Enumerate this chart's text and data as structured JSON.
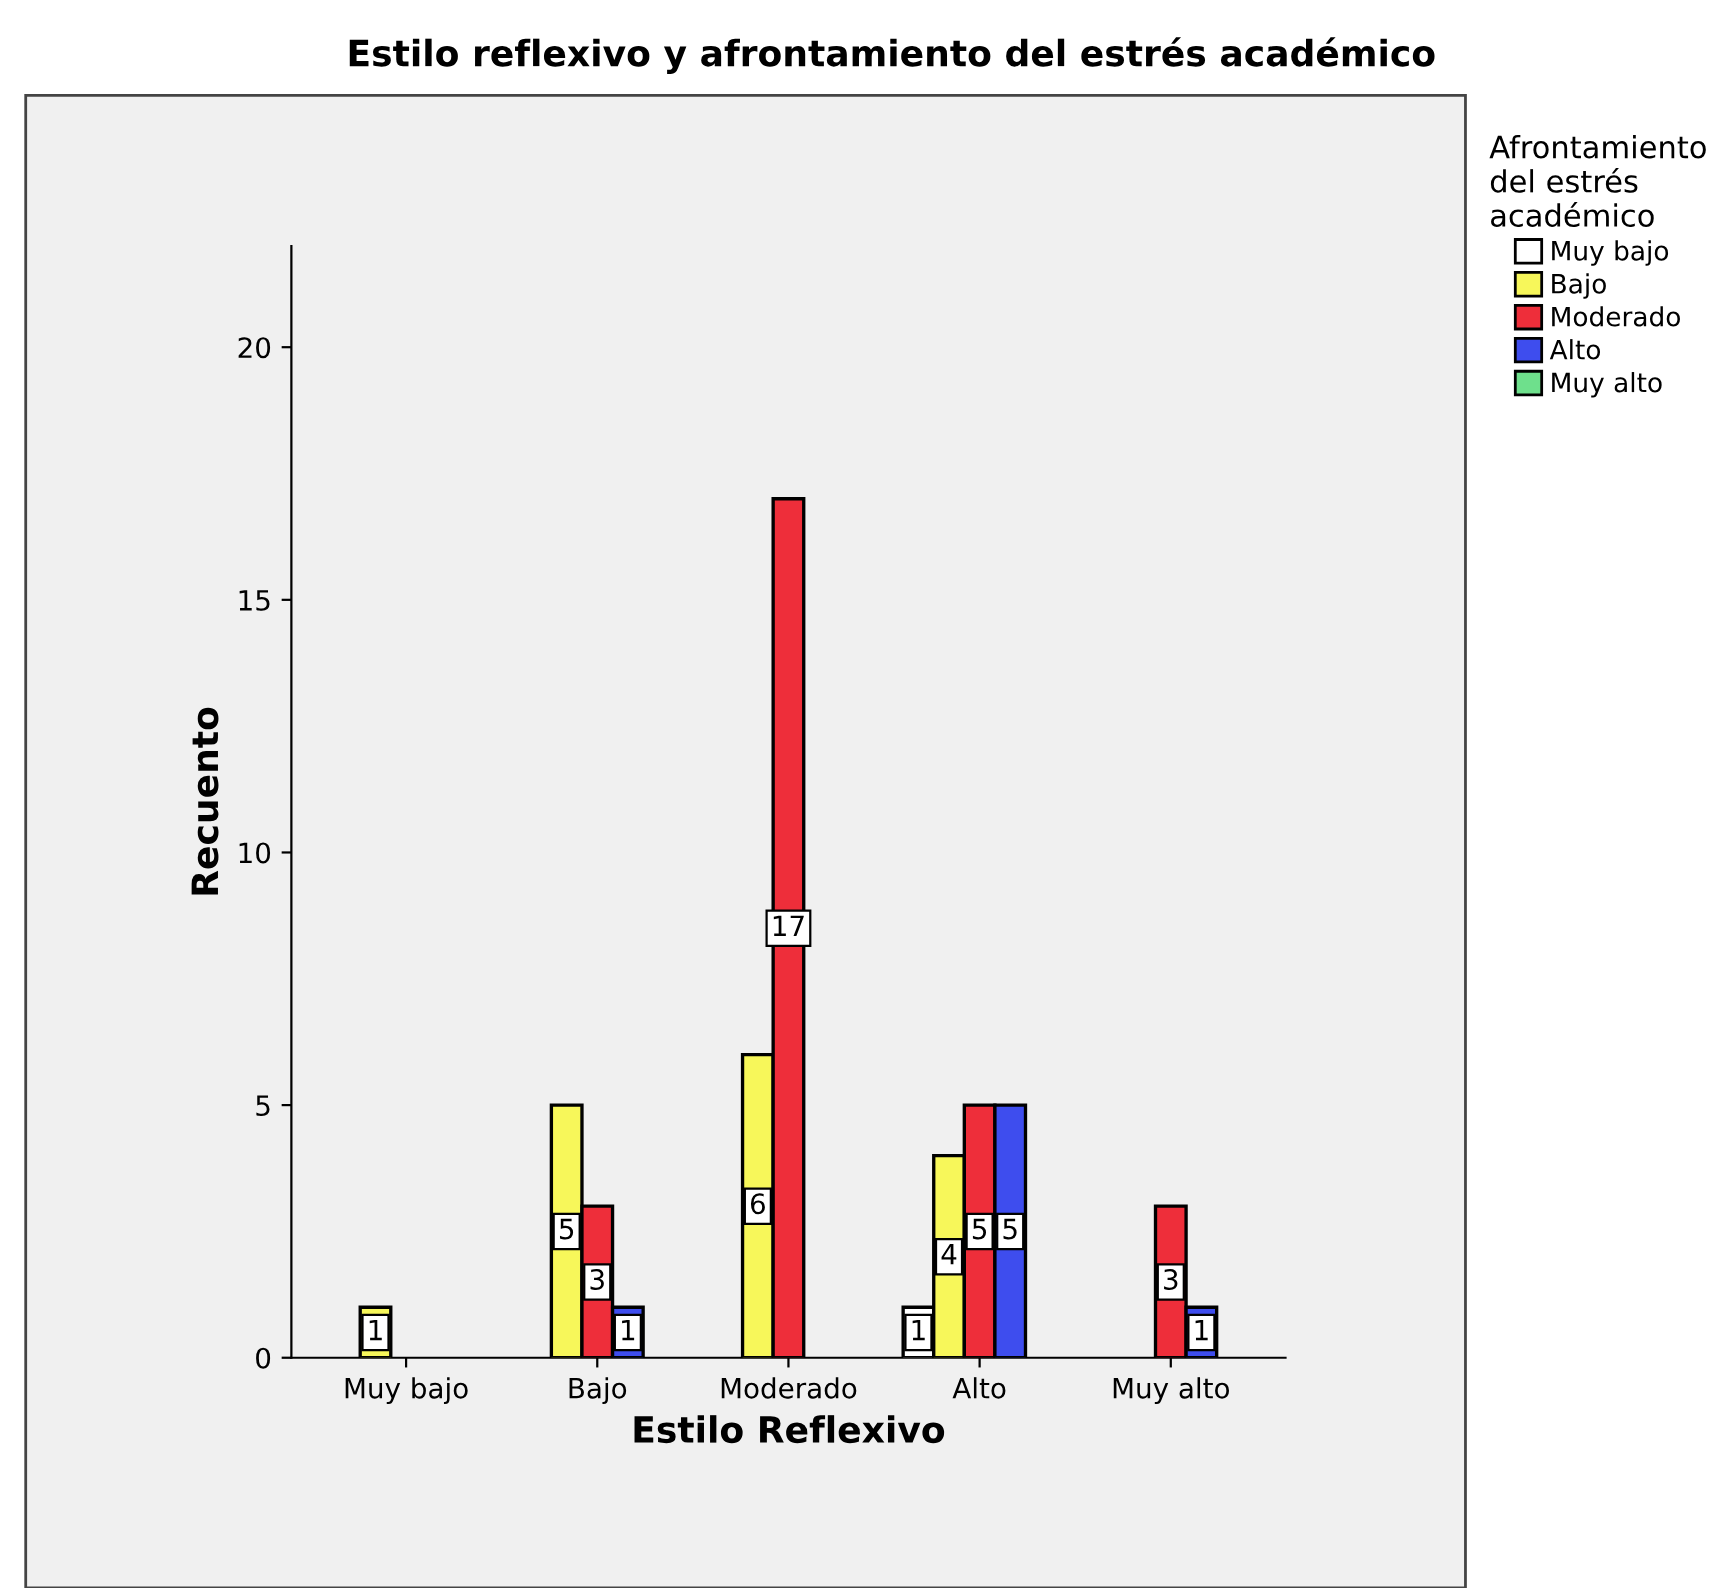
{
  "chart_data": {
    "type": "bar",
    "title": "Estilo reflexivo y afrontamiento del estrés académico",
    "xlabel": "Estilo Reflexivo",
    "ylabel": "Recuento",
    "legend_title": "Afrontamiento\ndel estrés\nacadémico",
    "categories": [
      "Muy bajo",
      "Bajo",
      "Moderado",
      "Alto",
      "Muy alto"
    ],
    "series": [
      {
        "name": "Muy bajo",
        "color": "#ffffff",
        "values": [
          null,
          null,
          null,
          1,
          null
        ]
      },
      {
        "name": "Bajo",
        "color": "#f7f75a",
        "values": [
          1,
          5,
          6,
          4,
          null
        ]
      },
      {
        "name": "Moderado",
        "color": "#ee2e3a",
        "values": [
          null,
          3,
          17,
          5,
          3
        ]
      },
      {
        "name": "Alto",
        "color": "#3e4dee",
        "values": [
          null,
          1,
          null,
          5,
          1
        ]
      },
      {
        "name": "Muy alto",
        "color": "#6ee08c",
        "values": [
          null,
          null,
          null,
          null,
          null
        ]
      }
    ],
    "ylim": [
      0,
      22
    ],
    "yticks": [
      0,
      5,
      10,
      15,
      20
    ],
    "data_labels": true,
    "grid": false,
    "legend": "top right"
  }
}
